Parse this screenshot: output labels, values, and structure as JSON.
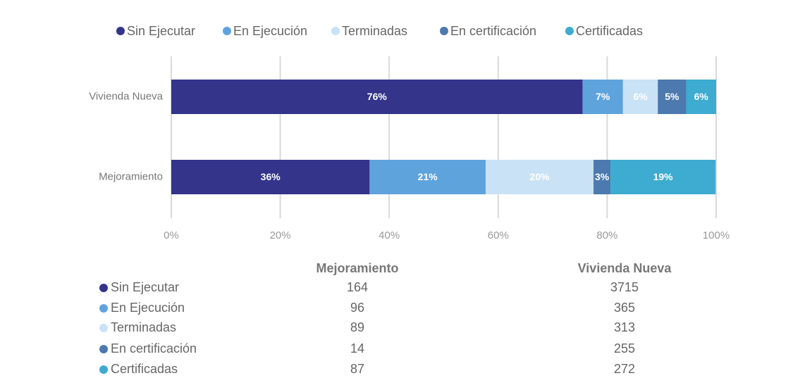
{
  "chart_data": {
    "type": "stacked-bar-horizontal",
    "categories": [
      "Vivienda Nueva",
      "Mejoramiento"
    ],
    "series": [
      {
        "name": "Sin Ejecutar",
        "color": "#33348a",
        "values": [
          75.5,
          36.4
        ],
        "value_labels": [
          "76%",
          "36%"
        ]
      },
      {
        "name": "En Ejecución",
        "color": "#5fa3dc",
        "values": [
          7.4,
          21.3
        ],
        "value_labels": [
          "7%",
          "21%"
        ]
      },
      {
        "name": "Terminadas",
        "color": "#c9e2f6",
        "values": [
          6.4,
          19.8
        ],
        "value_labels": [
          "6%",
          "20%"
        ]
      },
      {
        "name": "En certificación",
        "color": "#4c79ae",
        "values": [
          5.2,
          3.1
        ],
        "value_labels": [
          "5%",
          "3%"
        ]
      },
      {
        "name": "Certificadas",
        "color": "#3eabd0",
        "values": [
          5.5,
          19.3
        ],
        "value_labels": [
          "6%",
          "19%"
        ]
      }
    ],
    "xlim": [
      0,
      100
    ],
    "xticks": [
      {
        "value": 0,
        "label": "0%"
      },
      {
        "value": 20,
        "label": "20%"
      },
      {
        "value": 40,
        "label": "40%"
      },
      {
        "value": 60,
        "label": "60%"
      },
      {
        "value": 80,
        "label": "80%"
      },
      {
        "value": 100,
        "label": "100%"
      }
    ],
    "grid": true,
    "legend": "top"
  },
  "table": {
    "rows": [
      [
        164,
        3715
      ],
      [
        96,
        365
      ],
      [
        89,
        313
      ],
      [
        14,
        255
      ],
      [
        87,
        272
      ]
    ]
  }
}
